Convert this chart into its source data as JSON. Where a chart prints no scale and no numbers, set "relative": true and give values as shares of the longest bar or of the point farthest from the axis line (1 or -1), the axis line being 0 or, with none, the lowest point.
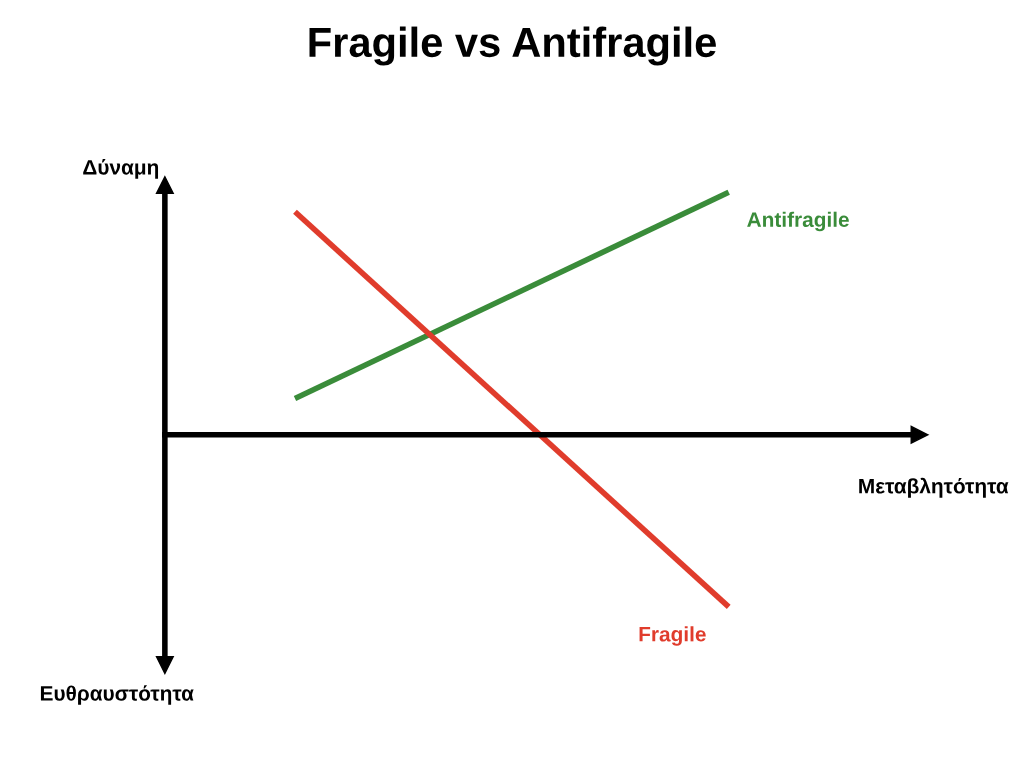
{
  "chart_data": {
    "type": "line",
    "title": "Fragile vs Antifragile",
    "xlabel": "Μεταβλητότητα",
    "ylabel": "Δύναμη",
    "annotations": [
      "Ευθραυστότητα"
    ],
    "categories": [
      null,
      null
    ],
    "relative": true,
    "series": [
      {
        "name": "Antifragile",
        "color": "#3a8c3a",
        "values": [
          0.15,
          1.0
        ]
      },
      {
        "name": "Fragile",
        "color": "#e03c2c",
        "values": [
          0.92,
          -0.71
        ]
      }
    ],
    "legend": false,
    "marker": "none",
    "line_style": "solid"
  }
}
